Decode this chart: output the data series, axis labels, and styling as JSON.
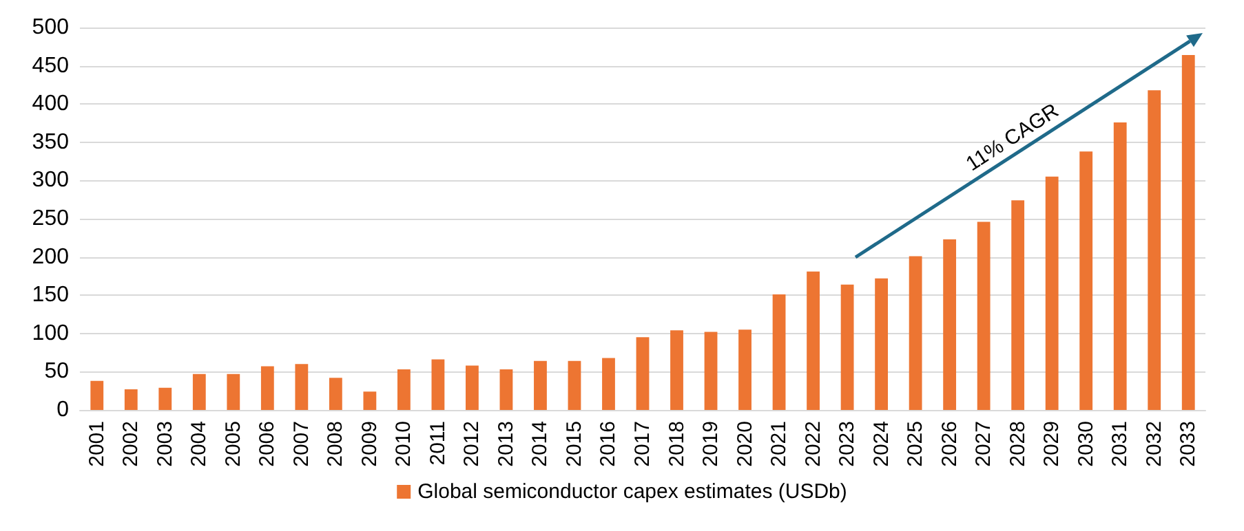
{
  "chart_data": {
    "type": "bar",
    "categories": [
      "2001",
      "2002",
      "2003",
      "2004",
      "2005",
      "2006",
      "2007",
      "2008",
      "2009",
      "2010",
      "2011",
      "2012",
      "2013",
      "2014",
      "2015",
      "2016",
      "2017",
      "2018",
      "2019",
      "2020",
      "2021",
      "2022",
      "2023",
      "2024",
      "2025",
      "2026",
      "2027",
      "2028",
      "2029",
      "2030",
      "2031",
      "2032",
      "2033"
    ],
    "series": [
      {
        "name": "Global semiconductor capex estimates (USDb)",
        "color": "#ed7532",
        "values": [
          38,
          27,
          29,
          47,
          47,
          57,
          60,
          42,
          24,
          53,
          66,
          58,
          53,
          64,
          64,
          68,
          95,
          104,
          102,
          105,
          151,
          181,
          164,
          172,
          201,
          223,
          246,
          274,
          305,
          338,
          376,
          418,
          464
        ]
      }
    ],
    "ylim": [
      0,
      500
    ],
    "yticks": [
      0,
      50,
      100,
      150,
      200,
      250,
      300,
      350,
      400,
      450,
      500
    ],
    "grid": "y",
    "legend": "bottom",
    "annotations": [
      "11% CAGR"
    ]
  }
}
